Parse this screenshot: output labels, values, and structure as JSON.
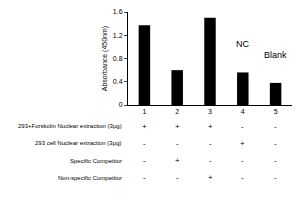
{
  "chart_data": {
    "type": "bar",
    "y_label": "Absorbance (450nm)",
    "categories": [
      "1",
      "2",
      "3",
      "4",
      "5"
    ],
    "values": [
      1.37,
      0.6,
      1.5,
      0.56,
      0.38
    ],
    "color": "#000000",
    "ylim": [
      0,
      1.6
    ],
    "yticks": [
      0,
      0.4,
      0.8,
      1.2,
      1.6
    ],
    "grid": false,
    "annotations": [
      {
        "category": "4",
        "text": "NC"
      },
      {
        "category": "5",
        "text": "Blank"
      }
    ],
    "conditions": [
      {
        "label": "293+Forskolin Nuclear extraction (3μg)",
        "marks": [
          "+",
          "+",
          "+",
          "-",
          "-"
        ]
      },
      {
        "label": "293 cell Nuclear extraction (3μg)",
        "marks": [
          "-",
          "-",
          "-",
          "+",
          "-"
        ]
      },
      {
        "label": "Specific Competitor",
        "marks": [
          "-",
          "+",
          "-",
          "-",
          "-"
        ]
      },
      {
        "label": "Non-specific Competitor",
        "marks": [
          "-",
          "-",
          "+",
          "-",
          "-"
        ]
      }
    ]
  }
}
